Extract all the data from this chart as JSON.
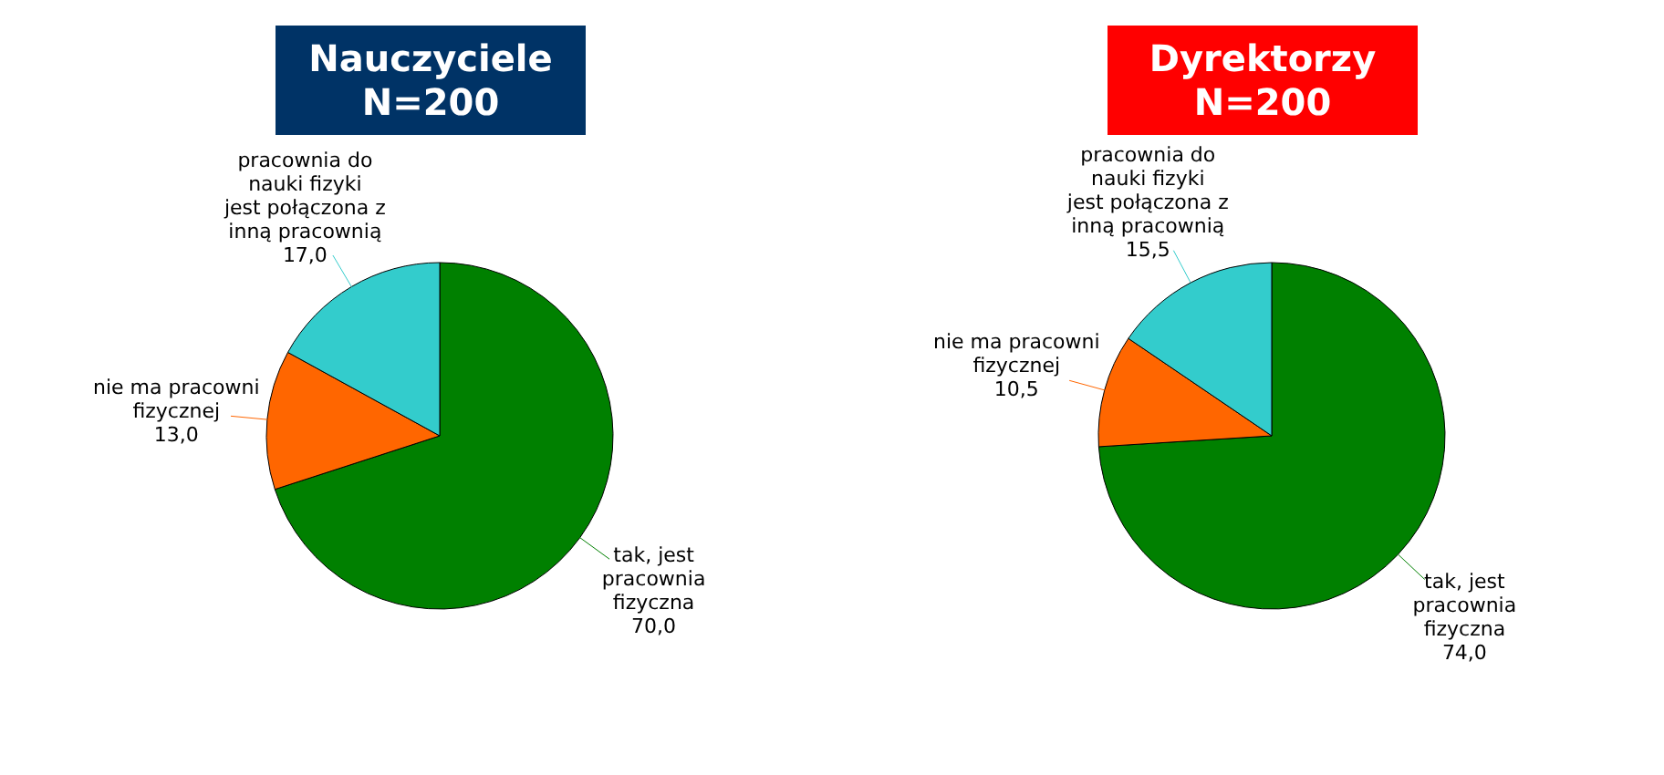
{
  "chart_data": [
    {
      "type": "pie",
      "title": "Nauczyciele N=200",
      "categories": [
        "tak, jest pracownia fizyczna",
        "nie ma pracowni fizycznej",
        "pracownia do nauki fizyki jest połączona z inną pracownią"
      ],
      "values": [
        70.0,
        13.0,
        17.0
      ],
      "value_labels": [
        "70,0",
        "13,0",
        "17,0"
      ],
      "colors": [
        "#008000",
        "#ff6600",
        "#33cccc"
      ]
    },
    {
      "type": "pie",
      "title": "Dyrektorzy N=200",
      "categories": [
        "tak, jest pracownia fizyczna",
        "nie ma pracowni fizycznej",
        "pracownia do nauki fizyki jest połączona z inną pracownią"
      ],
      "values": [
        74.0,
        10.5,
        15.5
      ],
      "value_labels": [
        "74,0",
        "10,5",
        "15,5"
      ],
      "colors": [
        "#008000",
        "#ff6600",
        "#33cccc"
      ]
    }
  ]
}
